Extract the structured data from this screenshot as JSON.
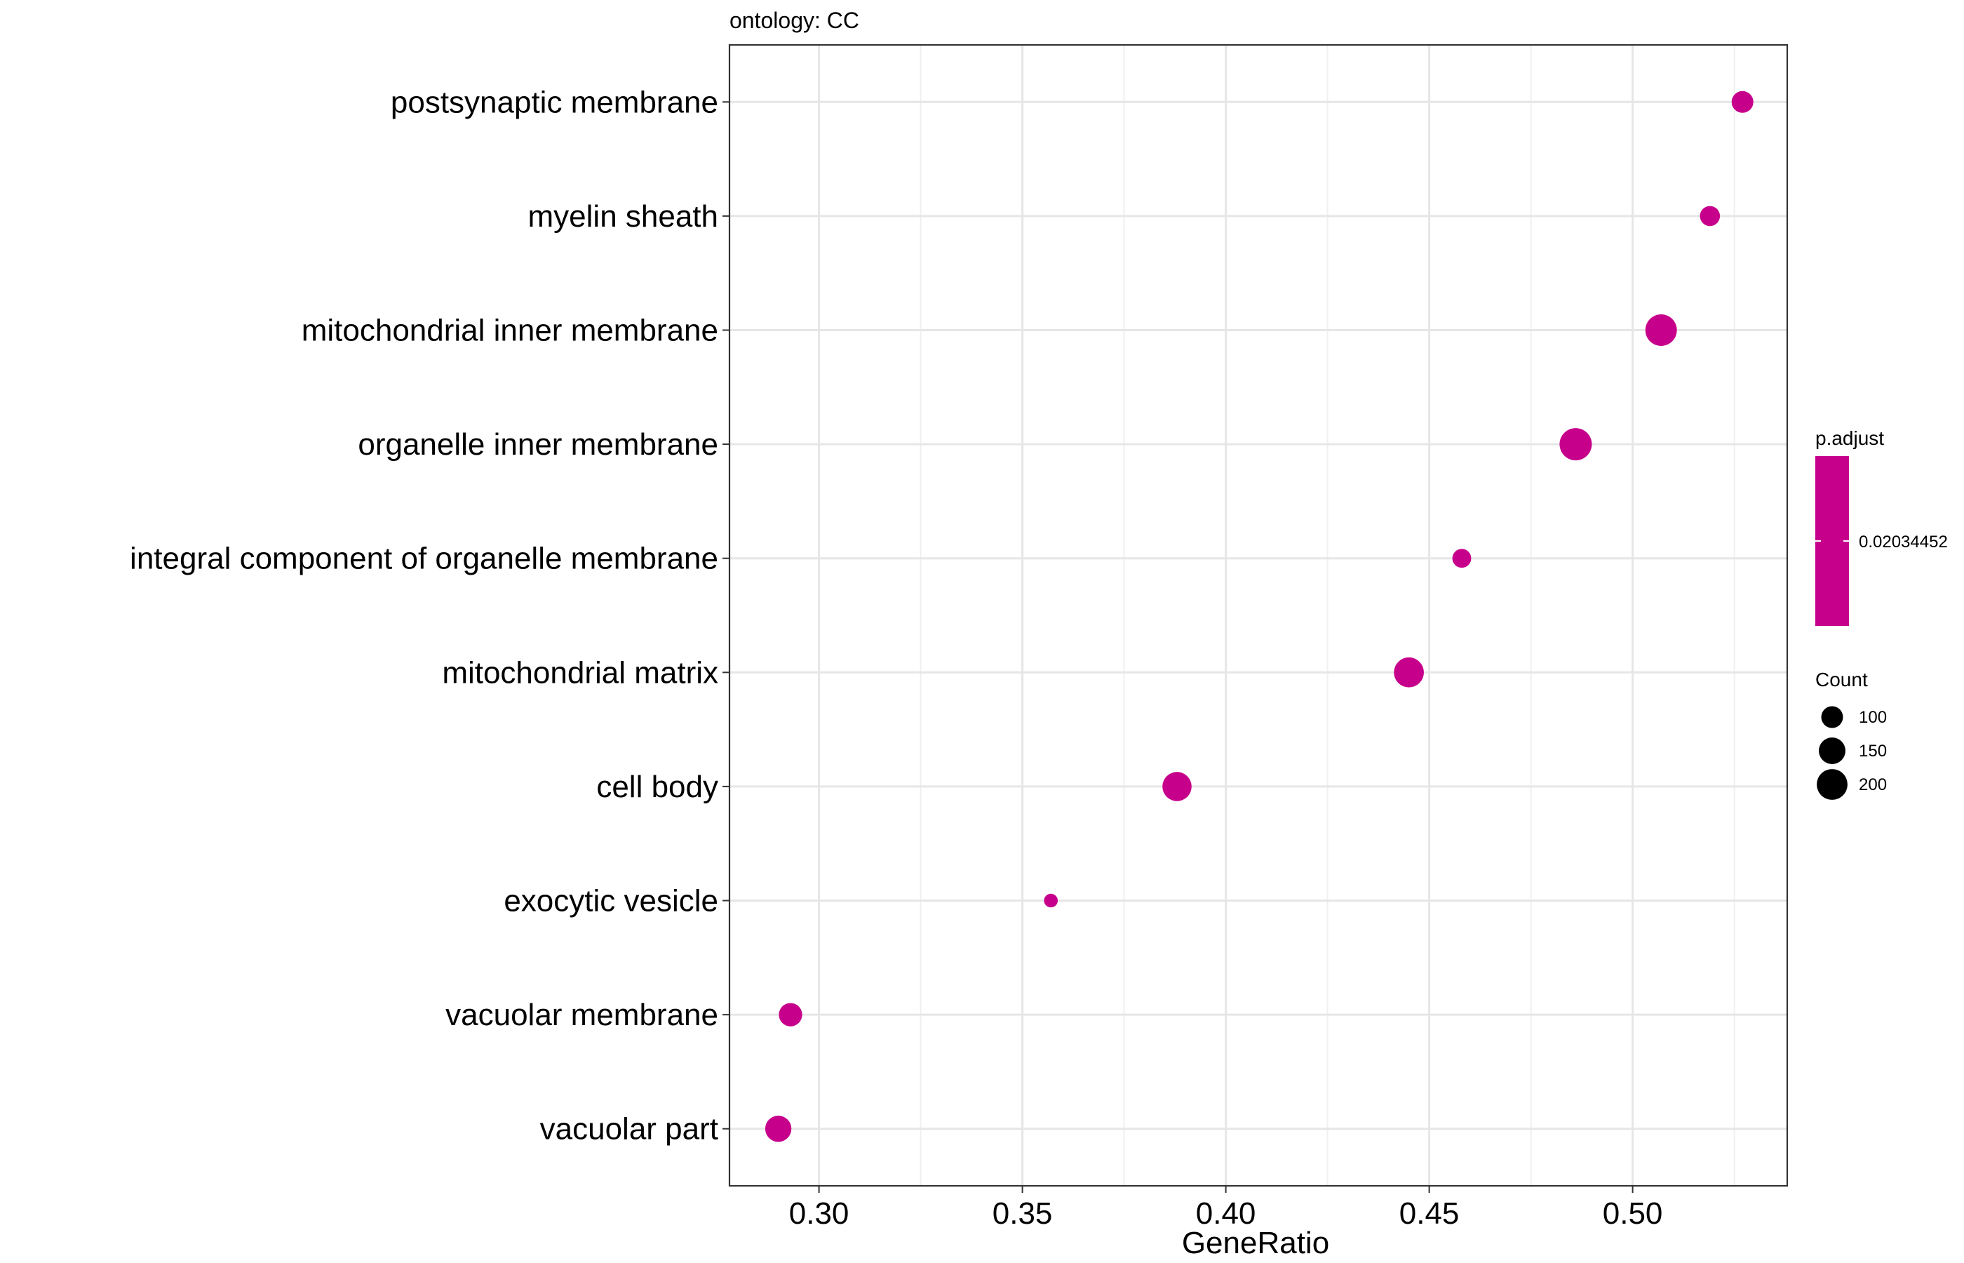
{
  "chart_data": {
    "type": "scatter",
    "title": "ontology: CC",
    "xlabel": "GeneRatio",
    "ylabel": "",
    "xlim": [
      0.278,
      0.538
    ],
    "xticks": [
      {
        "value": 0.3,
        "label": "0.30"
      },
      {
        "value": 0.35,
        "label": "0.35"
      },
      {
        "value": 0.4,
        "label": "0.40"
      },
      {
        "value": 0.45,
        "label": "0.45"
      },
      {
        "value": 0.5,
        "label": "0.50"
      }
    ],
    "categories": [
      "postsynaptic membrane",
      "myelin sheath",
      "mitochondrial inner membrane",
      "organelle inner membrane",
      "integral component of organelle membrane",
      "mitochondrial matrix",
      "cell body",
      "exocytic vesicle",
      "vacuolar membrane",
      "vacuolar part"
    ],
    "points": [
      {
        "term": "postsynaptic membrane",
        "gene_ratio": 0.527,
        "count": 100
      },
      {
        "term": "myelin sheath",
        "gene_ratio": 0.519,
        "count": 85
      },
      {
        "term": "mitochondrial inner membrane",
        "gene_ratio": 0.507,
        "count": 210
      },
      {
        "term": "organelle inner membrane",
        "gene_ratio": 0.486,
        "count": 220
      },
      {
        "term": "integral component of organelle membrane",
        "gene_ratio": 0.458,
        "count": 75
      },
      {
        "term": "mitochondrial matrix",
        "gene_ratio": 0.445,
        "count": 190
      },
      {
        "term": "cell body",
        "gene_ratio": 0.388,
        "count": 180
      },
      {
        "term": "exocytic vesicle",
        "gene_ratio": 0.357,
        "count": 40
      },
      {
        "term": "vacuolar membrane",
        "gene_ratio": 0.293,
        "count": 115
      },
      {
        "term": "vacuolar part",
        "gene_ratio": 0.29,
        "count": 145
      }
    ],
    "grid": true,
    "point_color": "#C7008B",
    "color_legend": {
      "title": "p.adjust",
      "label": "0.02034452",
      "color": "#C7008B"
    },
    "size_legend": {
      "title": "Count",
      "entries": [
        {
          "value": 100,
          "label": "100"
        },
        {
          "value": 150,
          "label": "150"
        },
        {
          "value": 200,
          "label": "200"
        }
      ]
    },
    "legend_position": "right"
  }
}
